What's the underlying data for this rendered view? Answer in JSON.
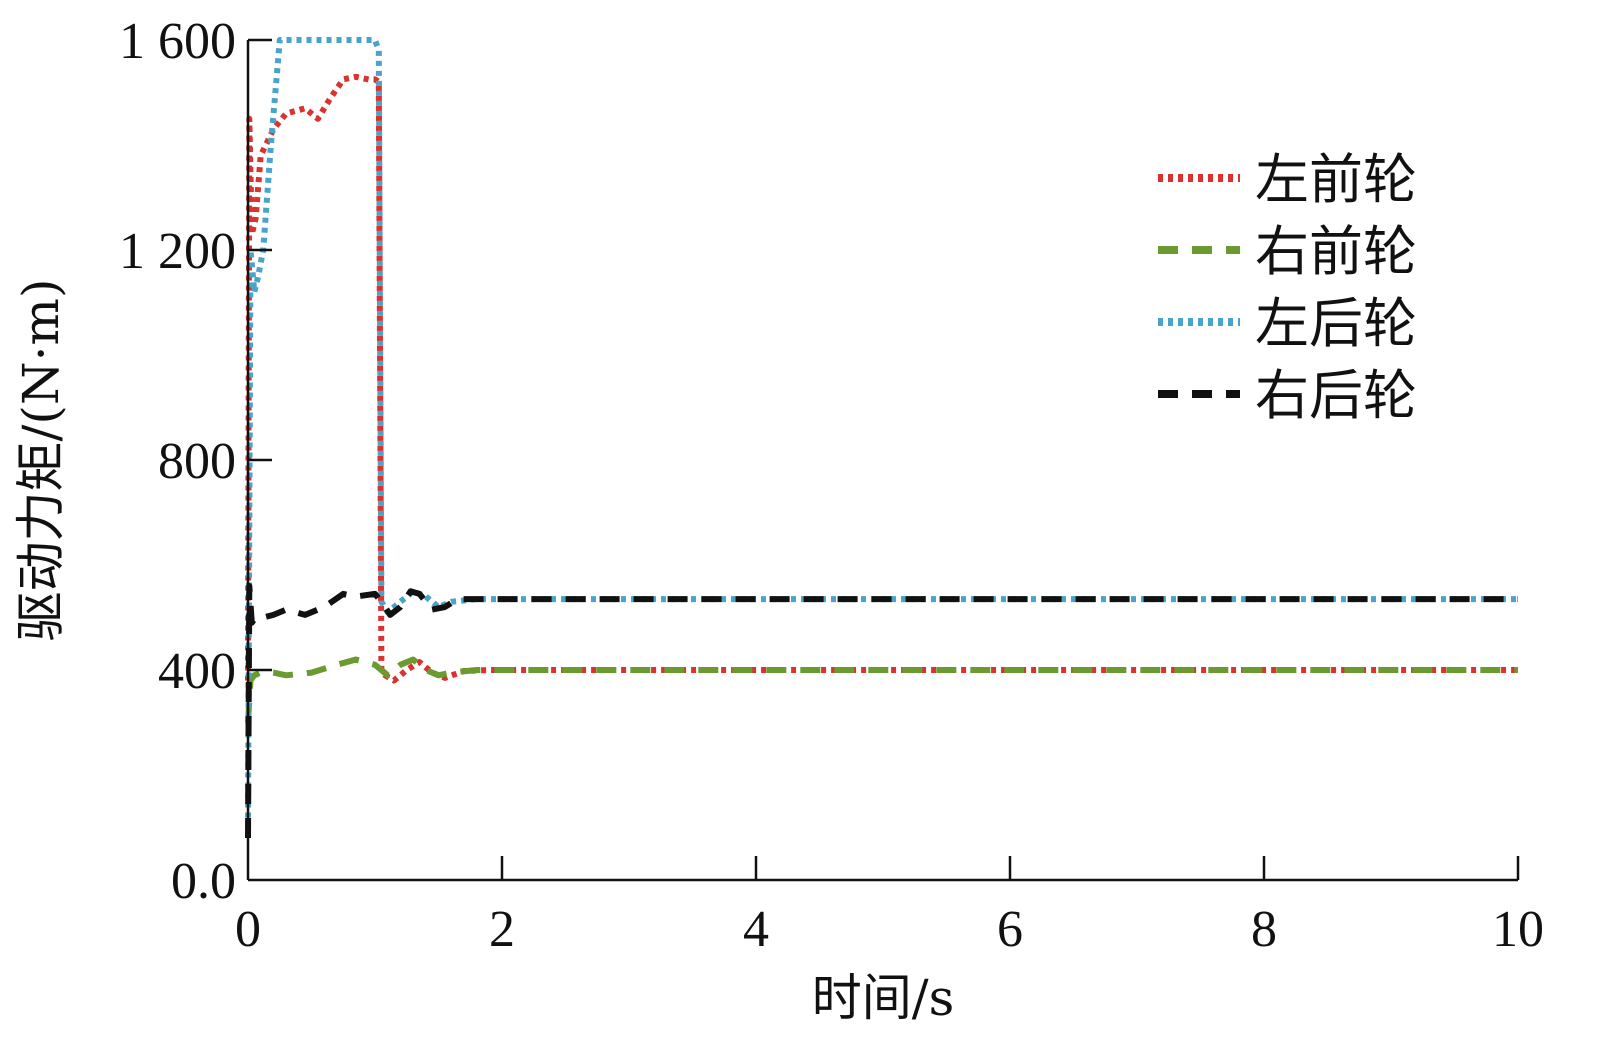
{
  "chart_data": {
    "type": "line",
    "xlabel": "时间/s",
    "ylabel": "驱动力矩/(N·m)",
    "xlim": [
      0,
      10
    ],
    "ylim": [
      0,
      1600
    ],
    "x_ticks": [
      0,
      2,
      4,
      6,
      8,
      10
    ],
    "x_tick_labels": [
      "0",
      "2",
      "4",
      "6",
      "8",
      "10"
    ],
    "y_ticks": [
      0,
      400,
      800,
      1200,
      1600
    ],
    "y_tick_labels": [
      "0.0",
      "400",
      "800",
      "1 200",
      "1 600"
    ],
    "grid": false,
    "legend_position": "top-right",
    "series": [
      {
        "name": "左前轮",
        "color": "#d9322f",
        "style": "dotted",
        "x": [
          0,
          0.01,
          0.03,
          0.06,
          0.1,
          0.2,
          0.3,
          0.45,
          0.55,
          0.65,
          0.75,
          0.85,
          0.95,
          1.0,
          1.03,
          1.05,
          1.08,
          1.15,
          1.25,
          1.35,
          1.45,
          1.55,
          1.7,
          1.9,
          3,
          5,
          7,
          9,
          10
        ],
        "y": [
          380,
          1450,
          1230,
          1260,
          1380,
          1430,
          1460,
          1470,
          1450,
          1490,
          1525,
          1530,
          1525,
          1525,
          1520,
          400,
          390,
          380,
          400,
          415,
          395,
          385,
          398,
          400,
          400,
          400,
          400,
          400,
          400
        ]
      },
      {
        "name": "右前轮",
        "color": "#6a9a30",
        "style": "dashed",
        "x": [
          0,
          0.02,
          0.05,
          0.1,
          0.2,
          0.3,
          0.5,
          0.7,
          0.85,
          1.0,
          1.05,
          1.1,
          1.2,
          1.3,
          1.4,
          1.5,
          1.6,
          1.8,
          2,
          4,
          6,
          8,
          10
        ],
        "y": [
          300,
          380,
          390,
          395,
          395,
          390,
          395,
          410,
          420,
          410,
          400,
          390,
          410,
          420,
          400,
          390,
          395,
          400,
          400,
          400,
          400,
          400,
          400
        ]
      },
      {
        "name": "左后轮",
        "color": "#4aa3c8",
        "style": "dotted",
        "x": [
          0,
          0.02,
          0.05,
          0.08,
          0.12,
          0.18,
          0.25,
          0.3,
          0.6,
          0.9,
          1.0,
          1.03,
          1.05,
          1.1,
          1.2,
          1.3,
          1.4,
          1.5,
          1.6,
          1.8,
          2,
          4,
          6,
          8,
          10
        ],
        "y": [
          100,
          1200,
          1120,
          1150,
          1200,
          1400,
          1600,
          1600,
          1600,
          1600,
          1600,
          1580,
          530,
          510,
          530,
          550,
          540,
          520,
          530,
          535,
          535,
          535,
          535,
          535,
          535
        ]
      },
      {
        "name": "右后轮",
        "color": "#111111",
        "style": "dashed",
        "x": [
          0,
          0.01,
          0.03,
          0.06,
          0.12,
          0.2,
          0.3,
          0.45,
          0.6,
          0.75,
          0.85,
          1.0,
          1.05,
          1.12,
          1.2,
          1.28,
          1.35,
          1.45,
          1.55,
          1.65,
          1.8,
          2,
          4,
          6,
          8,
          10
        ],
        "y": [
          80,
          560,
          490,
          500,
          500,
          505,
          515,
          505,
          520,
          545,
          540,
          545,
          530,
          505,
          520,
          550,
          545,
          515,
          520,
          535,
          535,
          535,
          535,
          535,
          535,
          535
        ]
      }
    ]
  }
}
